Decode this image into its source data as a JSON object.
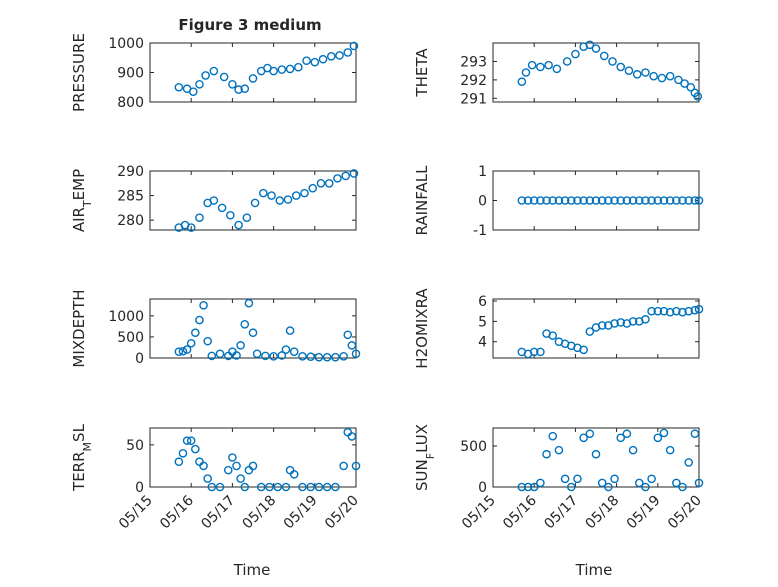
{
  "figure": {
    "title": "Figure 3 medium",
    "xlabel": "Time"
  },
  "colors": {
    "series": "#0072BD",
    "axis": "#262626",
    "grid": "#dcdcdc"
  },
  "x_axis": {
    "type": "date",
    "range": [
      "05/15",
      "05/20"
    ],
    "ticks": [
      {
        "value": 0,
        "label": "05/15"
      },
      {
        "value": 1,
        "label": "05/16"
      },
      {
        "value": 2,
        "label": "05/17"
      },
      {
        "value": 3,
        "label": "05/18"
      },
      {
        "value": 4,
        "label": "05/19"
      },
      {
        "value": 5,
        "label": "05/20"
      }
    ]
  },
  "chart_data": [
    {
      "type": "scatter",
      "title": "Figure 3 medium",
      "xlabel": "",
      "ylabel": "PRESSURE",
      "ylim": [
        800,
        1000
      ],
      "yticks": [
        800,
        900,
        1000
      ],
      "grid": true,
      "x": [
        0.7,
        0.9,
        1.05,
        1.2,
        1.35,
        1.55,
        1.8,
        2.0,
        2.15,
        2.3,
        2.5,
        2.7,
        2.85,
        3.0,
        3.2,
        3.4,
        3.6,
        3.8,
        4.0,
        4.2,
        4.4,
        4.6,
        4.8,
        4.95
      ],
      "values": [
        850,
        845,
        835,
        860,
        890,
        905,
        885,
        860,
        842,
        845,
        880,
        905,
        915,
        905,
        910,
        912,
        918,
        940,
        935,
        945,
        955,
        958,
        968,
        990
      ]
    },
    {
      "type": "scatter",
      "ylabel": "THETA",
      "ylim": [
        290.8,
        294
      ],
      "yticks": [
        291,
        292,
        293
      ],
      "grid": true,
      "x": [
        0.7,
        0.8,
        0.95,
        1.15,
        1.35,
        1.55,
        1.8,
        2.0,
        2.2,
        2.35,
        2.5,
        2.7,
        2.9,
        3.1,
        3.3,
        3.5,
        3.7,
        3.9,
        4.1,
        4.3,
        4.5,
        4.65,
        4.8,
        4.9,
        4.97
      ],
      "values": [
        291.9,
        292.4,
        292.8,
        292.7,
        292.8,
        292.6,
        293.0,
        293.4,
        293.8,
        293.9,
        293.7,
        293.3,
        293.0,
        292.7,
        292.5,
        292.3,
        292.4,
        292.2,
        292.1,
        292.2,
        292.0,
        291.8,
        291.6,
        291.3,
        291.1
      ]
    },
    {
      "type": "scatter",
      "ylabel": "AIR_TEMP",
      "ylim": [
        278,
        290
      ],
      "yticks": [
        280,
        285,
        290
      ],
      "grid": true,
      "x": [
        0.7,
        0.85,
        1.0,
        1.2,
        1.4,
        1.55,
        1.75,
        1.95,
        2.15,
        2.35,
        2.55,
        2.75,
        2.95,
        3.15,
        3.35,
        3.55,
        3.75,
        3.95,
        4.15,
        4.35,
        4.55,
        4.75,
        4.95
      ],
      "values": [
        278.5,
        279.0,
        278.5,
        280.5,
        283.5,
        284.0,
        282.5,
        281.0,
        279.0,
        280.5,
        283.5,
        285.5,
        285.0,
        284.0,
        284.2,
        285.0,
        285.5,
        286.5,
        287.5,
        287.5,
        288.5,
        289.0,
        289.5
      ]
    },
    {
      "type": "scatter",
      "ylabel": "RAINFALL",
      "ylim": [
        -1,
        1
      ],
      "yticks": [
        -1,
        0,
        1
      ],
      "grid": true,
      "x": [
        0.7,
        0.85,
        1.0,
        1.15,
        1.3,
        1.45,
        1.6,
        1.75,
        1.9,
        2.05,
        2.2,
        2.35,
        2.5,
        2.65,
        2.8,
        2.95,
        3.1,
        3.25,
        3.4,
        3.55,
        3.7,
        3.85,
        4.0,
        4.15,
        4.3,
        4.45,
        4.6,
        4.75,
        4.9,
        5.0
      ],
      "values": [
        0,
        0,
        0,
        0,
        0,
        0,
        0,
        0,
        0,
        0,
        0,
        0,
        0,
        0,
        0,
        0,
        0,
        0,
        0,
        0,
        0,
        0,
        0,
        0,
        0,
        0,
        0,
        0,
        0,
        0
      ]
    },
    {
      "type": "scatter",
      "ylabel": "MIXDEPTH",
      "ylim": [
        0,
        1400
      ],
      "yticks": [
        0,
        500,
        1000
      ],
      "grid": true,
      "x": [
        0.7,
        0.8,
        0.9,
        1.0,
        1.1,
        1.2,
        1.3,
        1.4,
        1.5,
        1.7,
        1.9,
        2.0,
        2.1,
        2.2,
        2.3,
        2.4,
        2.5,
        2.6,
        2.8,
        3.0,
        3.2,
        3.3,
        3.4,
        3.5,
        3.7,
        3.9,
        4.1,
        4.3,
        4.5,
        4.7,
        4.8,
        4.9,
        5.0
      ],
      "values": [
        150,
        160,
        200,
        350,
        600,
        900,
        1250,
        400,
        50,
        100,
        50,
        150,
        60,
        300,
        800,
        1300,
        600,
        100,
        50,
        40,
        60,
        200,
        650,
        150,
        40,
        30,
        20,
        20,
        20,
        40,
        550,
        300,
        100
      ]
    },
    {
      "type": "scatter",
      "ylabel": "H2OMIXRA",
      "ylim": [
        3.2,
        6.1
      ],
      "yticks": [
        4,
        5,
        6
      ],
      "grid": true,
      "x": [
        0.7,
        0.85,
        1.0,
        1.15,
        1.3,
        1.45,
        1.6,
        1.75,
        1.9,
        2.05,
        2.2,
        2.35,
        2.5,
        2.65,
        2.8,
        2.95,
        3.1,
        3.25,
        3.4,
        3.55,
        3.7,
        3.85,
        4.0,
        4.15,
        4.3,
        4.45,
        4.6,
        4.75,
        4.9,
        5.0
      ],
      "values": [
        3.5,
        3.4,
        3.5,
        3.5,
        4.4,
        4.3,
        4.0,
        3.9,
        3.8,
        3.7,
        3.6,
        4.5,
        4.7,
        4.8,
        4.8,
        4.9,
        4.95,
        4.9,
        5.0,
        5.0,
        5.1,
        5.5,
        5.5,
        5.5,
        5.45,
        5.5,
        5.45,
        5.5,
        5.55,
        5.6
      ]
    },
    {
      "type": "scatter",
      "ylabel": "TERR_MSL",
      "ylim": [
        0,
        70
      ],
      "yticks": [
        0,
        50
      ],
      "grid": true,
      "x": [
        0.7,
        0.8,
        0.9,
        1.0,
        1.1,
        1.2,
        1.3,
        1.4,
        1.5,
        1.7,
        1.9,
        2.0,
        2.1,
        2.2,
        2.3,
        2.4,
        2.5,
        2.7,
        2.9,
        3.1,
        3.3,
        3.4,
        3.5,
        3.7,
        3.9,
        4.1,
        4.3,
        4.5,
        4.7,
        4.8,
        4.9,
        5.0
      ],
      "values": [
        30,
        40,
        55,
        55,
        45,
        30,
        25,
        10,
        0,
        0,
        20,
        35,
        25,
        10,
        0,
        20,
        25,
        0,
        0,
        0,
        0,
        20,
        15,
        0,
        0,
        0,
        0,
        0,
        25,
        65,
        60,
        25
      ]
    },
    {
      "type": "scatter",
      "ylabel": "SUN_FLUX",
      "ylim": [
        0,
        720
      ],
      "yticks": [
        0,
        500
      ],
      "grid": true,
      "x": [
        0.7,
        0.85,
        1.0,
        1.15,
        1.3,
        1.45,
        1.6,
        1.75,
        1.9,
        2.05,
        2.2,
        2.35,
        2.5,
        2.65,
        2.8,
        2.95,
        3.1,
        3.25,
        3.4,
        3.55,
        3.7,
        3.85,
        4.0,
        4.15,
        4.3,
        4.45,
        4.6,
        4.75,
        4.9,
        5.0
      ],
      "values": [
        0,
        0,
        0,
        50,
        400,
        620,
        450,
        100,
        0,
        100,
        600,
        650,
        400,
        50,
        0,
        100,
        600,
        650,
        450,
        50,
        0,
        100,
        600,
        660,
        450,
        50,
        0,
        300,
        650,
        50
      ]
    }
  ]
}
